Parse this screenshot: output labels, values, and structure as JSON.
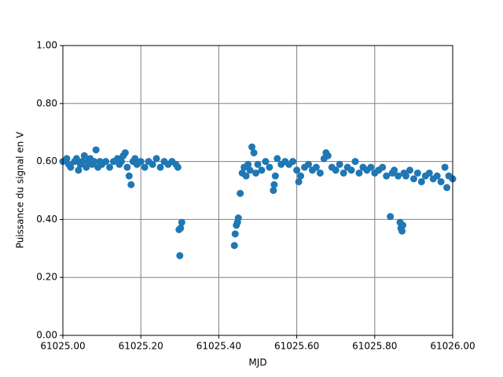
{
  "chart_data": {
    "type": "scatter",
    "xlabel": "MJD",
    "ylabel": "Puissance du signal en V",
    "color": "#1f77b4",
    "grid": true,
    "xlim": [
      61025.0,
      61026.0
    ],
    "xticks": [
      {
        "value": 61025.0,
        "label": "61025.00"
      },
      {
        "value": 61025.2,
        "label": "61025.20"
      },
      {
        "value": 61025.4,
        "label": "61025.40"
      },
      {
        "value": 61025.6,
        "label": "61025.60"
      },
      {
        "value": 61025.8,
        "label": "61025.80"
      },
      {
        "value": 61026.0,
        "label": "61026.00"
      }
    ],
    "ylim": [
      0,
      1
    ],
    "yticks": [
      {
        "value": 0,
        "label": "0.00"
      },
      {
        "value": 0.2,
        "label": "0.20"
      },
      {
        "value": 0.4,
        "label": "0.40"
      },
      {
        "value": 0.6,
        "label": "0.60"
      },
      {
        "value": 0.8,
        "label": "0.80"
      },
      {
        "value": 1,
        "label": "1.00"
      }
    ],
    "x": [
      61025.0,
      61025.01,
      61025.015,
      61025.02,
      61025.03,
      61025.035,
      61025.04,
      61025.045,
      61025.05,
      61025.055,
      61025.06,
      61025.065,
      61025.07,
      61025.075,
      61025.08,
      61025.085,
      61025.09,
      61025.095,
      61025.1,
      61025.11,
      61025.12,
      61025.13,
      61025.14,
      61025.145,
      61025.15,
      61025.155,
      61025.16,
      61025.165,
      61025.17,
      61025.175,
      61025.18,
      61025.185,
      61025.19,
      61025.2,
      61025.21,
      61025.22,
      61025.23,
      61025.24,
      61025.25,
      61025.26,
      61025.27,
      61025.28,
      61025.29,
      61025.295,
      61025.298,
      61025.3,
      61025.302,
      61025.305,
      61025.44,
      61025.442,
      61025.445,
      61025.448,
      61025.45,
      61025.455,
      61025.46,
      61025.465,
      61025.47,
      61025.475,
      61025.48,
      61025.485,
      61025.49,
      61025.495,
      61025.5,
      61025.51,
      61025.52,
      61025.53,
      61025.54,
      61025.542,
      61025.545,
      61025.55,
      61025.56,
      61025.57,
      61025.58,
      61025.59,
      61025.6,
      61025.605,
      61025.61,
      61025.62,
      61025.63,
      61025.64,
      61025.65,
      61025.66,
      61025.67,
      61025.675,
      61025.68,
      61025.69,
      61025.7,
      61025.71,
      61025.72,
      61025.73,
      61025.74,
      61025.75,
      61025.76,
      61025.77,
      61025.78,
      61025.79,
      61025.8,
      61025.81,
      61025.82,
      61025.83,
      61025.84,
      61025.845,
      61025.85,
      61025.86,
      61025.865,
      61025.867,
      61025.87,
      61025.872,
      61025.875,
      61025.88,
      61025.89,
      61025.9,
      61025.91,
      61025.92,
      61025.93,
      61025.94,
      61025.95,
      61025.96,
      61025.97,
      61025.98,
      61025.985,
      61025.99,
      61026.0
    ],
    "values": [
      0.6,
      0.61,
      0.59,
      0.58,
      0.6,
      0.61,
      0.57,
      0.59,
      0.6,
      0.62,
      0.58,
      0.6,
      0.61,
      0.59,
      0.6,
      0.64,
      0.58,
      0.6,
      0.59,
      0.6,
      0.58,
      0.6,
      0.61,
      0.59,
      0.6,
      0.62,
      0.63,
      0.58,
      0.55,
      0.52,
      0.6,
      0.61,
      0.59,
      0.6,
      0.58,
      0.6,
      0.59,
      0.61,
      0.58,
      0.6,
      0.59,
      0.6,
      0.59,
      0.58,
      0.365,
      0.275,
      0.37,
      0.39,
      0.31,
      0.35,
      0.38,
      0.39,
      0.405,
      0.49,
      0.56,
      0.58,
      0.55,
      0.59,
      0.57,
      0.65,
      0.63,
      0.56,
      0.59,
      0.57,
      0.6,
      0.58,
      0.5,
      0.52,
      0.55,
      0.61,
      0.59,
      0.6,
      0.59,
      0.6,
      0.57,
      0.53,
      0.55,
      0.58,
      0.59,
      0.57,
      0.58,
      0.56,
      0.61,
      0.63,
      0.62,
      0.58,
      0.57,
      0.59,
      0.56,
      0.58,
      0.57,
      0.6,
      0.56,
      0.58,
      0.57,
      0.58,
      0.56,
      0.57,
      0.58,
      0.55,
      0.41,
      0.56,
      0.57,
      0.55,
      0.39,
      0.37,
      0.36,
      0.38,
      0.56,
      0.55,
      0.57,
      0.54,
      0.56,
      0.53,
      0.55,
      0.56,
      0.54,
      0.55,
      0.53,
      0.58,
      0.51,
      0.55,
      0.54
    ]
  }
}
